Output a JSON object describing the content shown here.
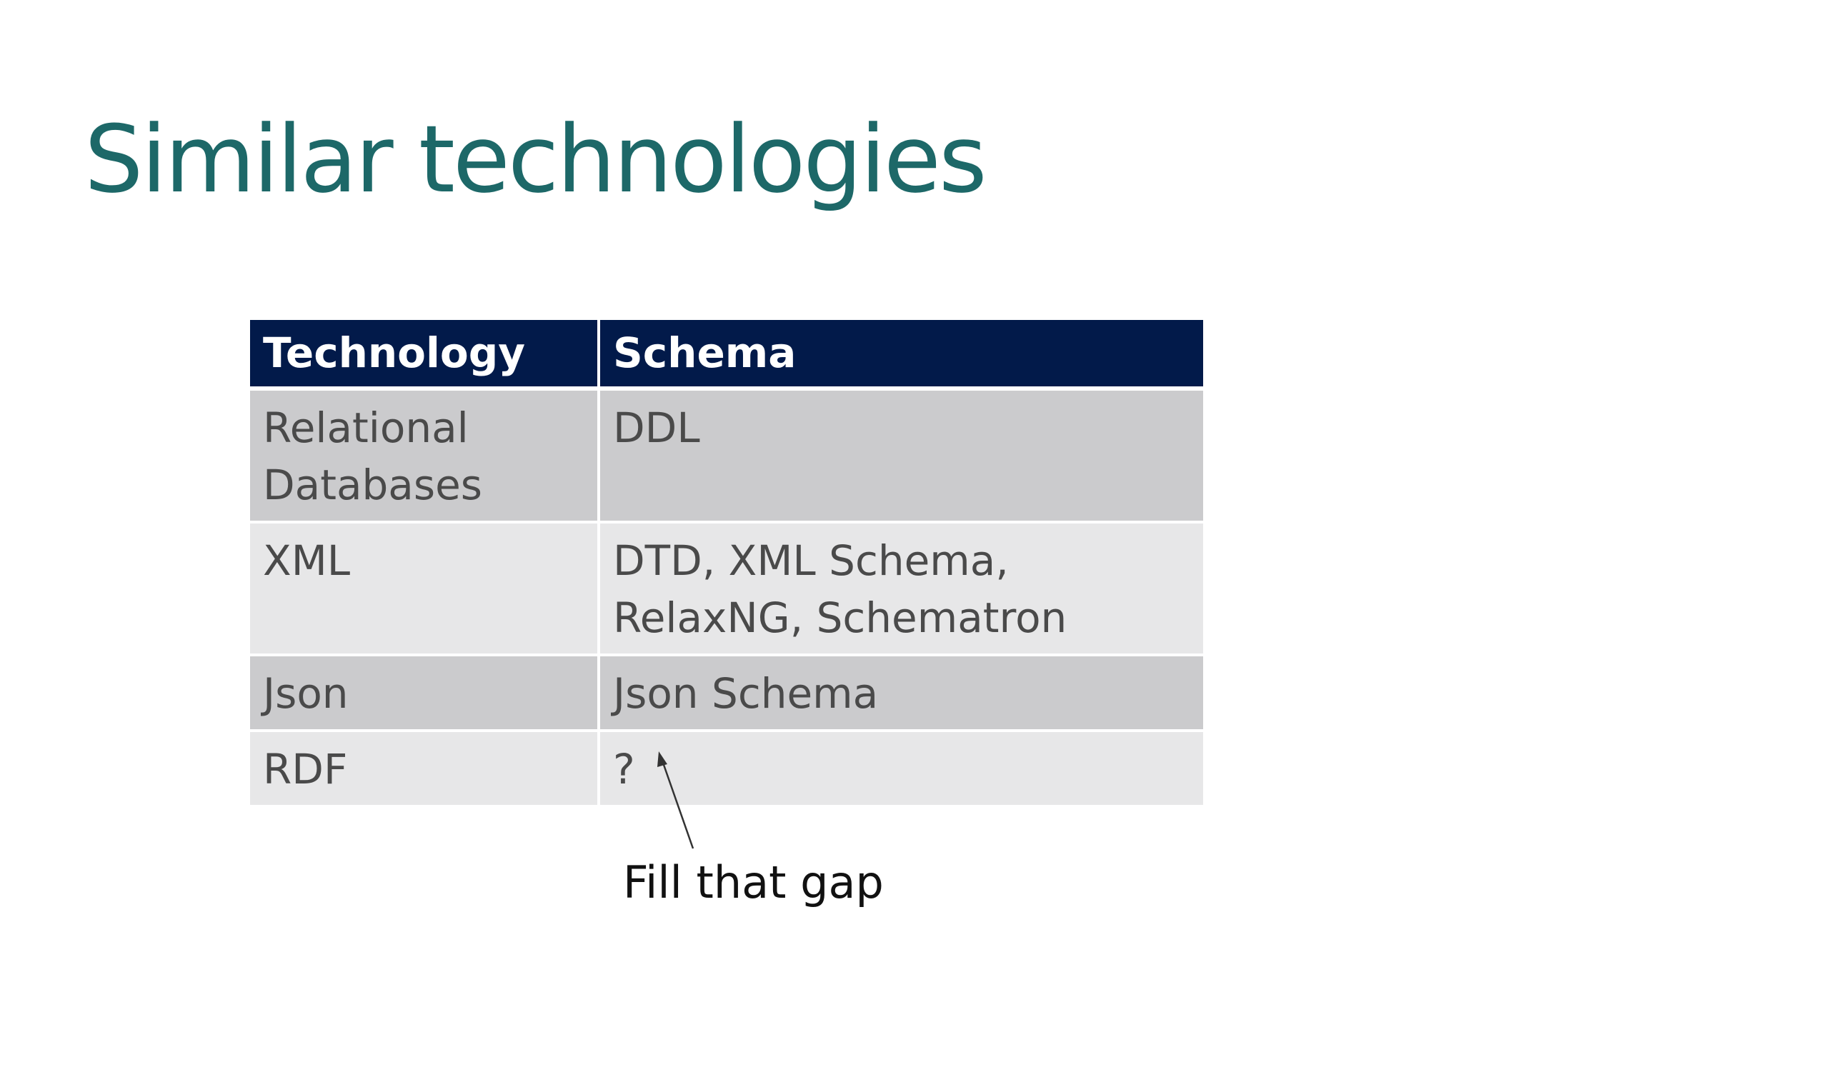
{
  "title": "Similar technologies",
  "table": {
    "headers": [
      "Technology",
      "Schema"
    ],
    "rows": [
      [
        "Relational\nDatabases",
        "DDL"
      ],
      [
        "XML",
        "DTD, XML Schema,\nRelaxNG, Schematron"
      ],
      [
        "Json",
        "Json Schema"
      ],
      [
        "RDF",
        "?"
      ]
    ]
  },
  "annotation": "Fill that gap",
  "colors": {
    "title": "#1d6868",
    "header_background": "#021a4a",
    "row_odd": "#cbcbcd",
    "row_even": "#e7e7e8"
  }
}
